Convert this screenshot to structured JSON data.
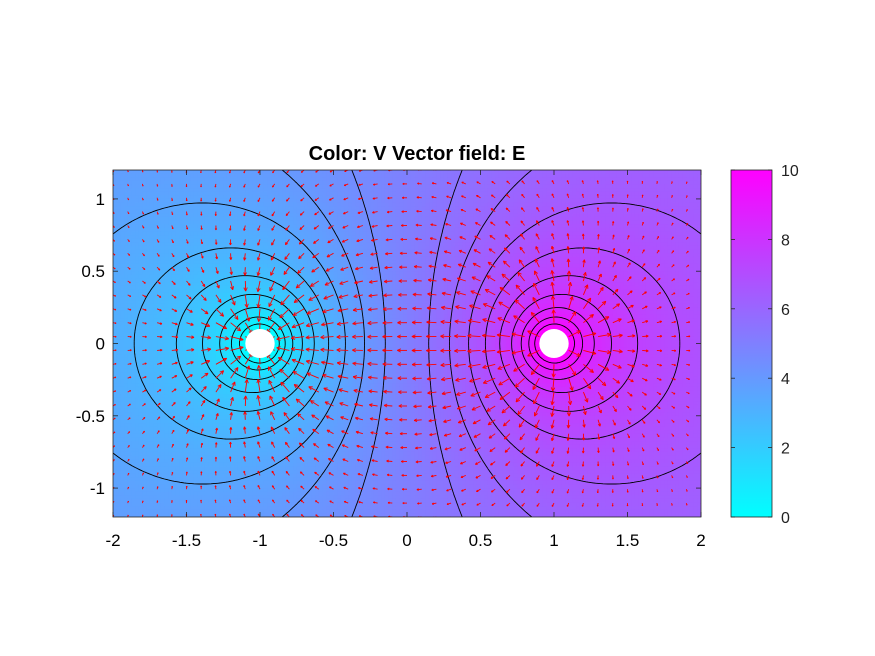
{
  "chart_data": {
    "type": "heatmap",
    "title": "Color: V  Vector field: E",
    "xlabel": "",
    "ylabel": "",
    "xlim": [
      -2,
      2
    ],
    "ylim": [
      -1.2,
      1.2
    ],
    "x_ticks": [
      "-2",
      "-1.5",
      "-1",
      "-0.5",
      "0",
      "0.5",
      "1",
      "1.5",
      "2"
    ],
    "y_ticks": [
      "1",
      "0.5",
      "0",
      "-0.5",
      "-1"
    ],
    "x_tick_values": [
      -2,
      -1.5,
      -1,
      -0.5,
      0,
      0.5,
      1,
      1.5,
      2
    ],
    "y_tick_values": [
      1,
      0.5,
      0,
      -0.5,
      -1
    ],
    "colorbar": {
      "min": 0,
      "max": 10,
      "ticks": [
        "0",
        "2",
        "4",
        "6",
        "8",
        "10"
      ],
      "tick_values": [
        0,
        2,
        4,
        6,
        8,
        10
      ],
      "colormap": "cool",
      "color_low": "#00ffff",
      "color_high": "#ff00ff"
    },
    "color_field": "V",
    "vector_field": "E",
    "electrodes": [
      {
        "x": -1,
        "y": 0,
        "radius": 0.1,
        "potential": 0
      },
      {
        "x": 1,
        "y": 0,
        "radius": 0.1,
        "potential": 10
      }
    ],
    "contour_levels": [
      0.5,
      1,
      1.5,
      2,
      2.5,
      3,
      3.5,
      4,
      4.5,
      5,
      5.5,
      6,
      6.5,
      7,
      7.5,
      8,
      8.5,
      9,
      9.5
    ],
    "contour_color": "#000000",
    "arrow_color": "#ff0000",
    "grid": false
  }
}
